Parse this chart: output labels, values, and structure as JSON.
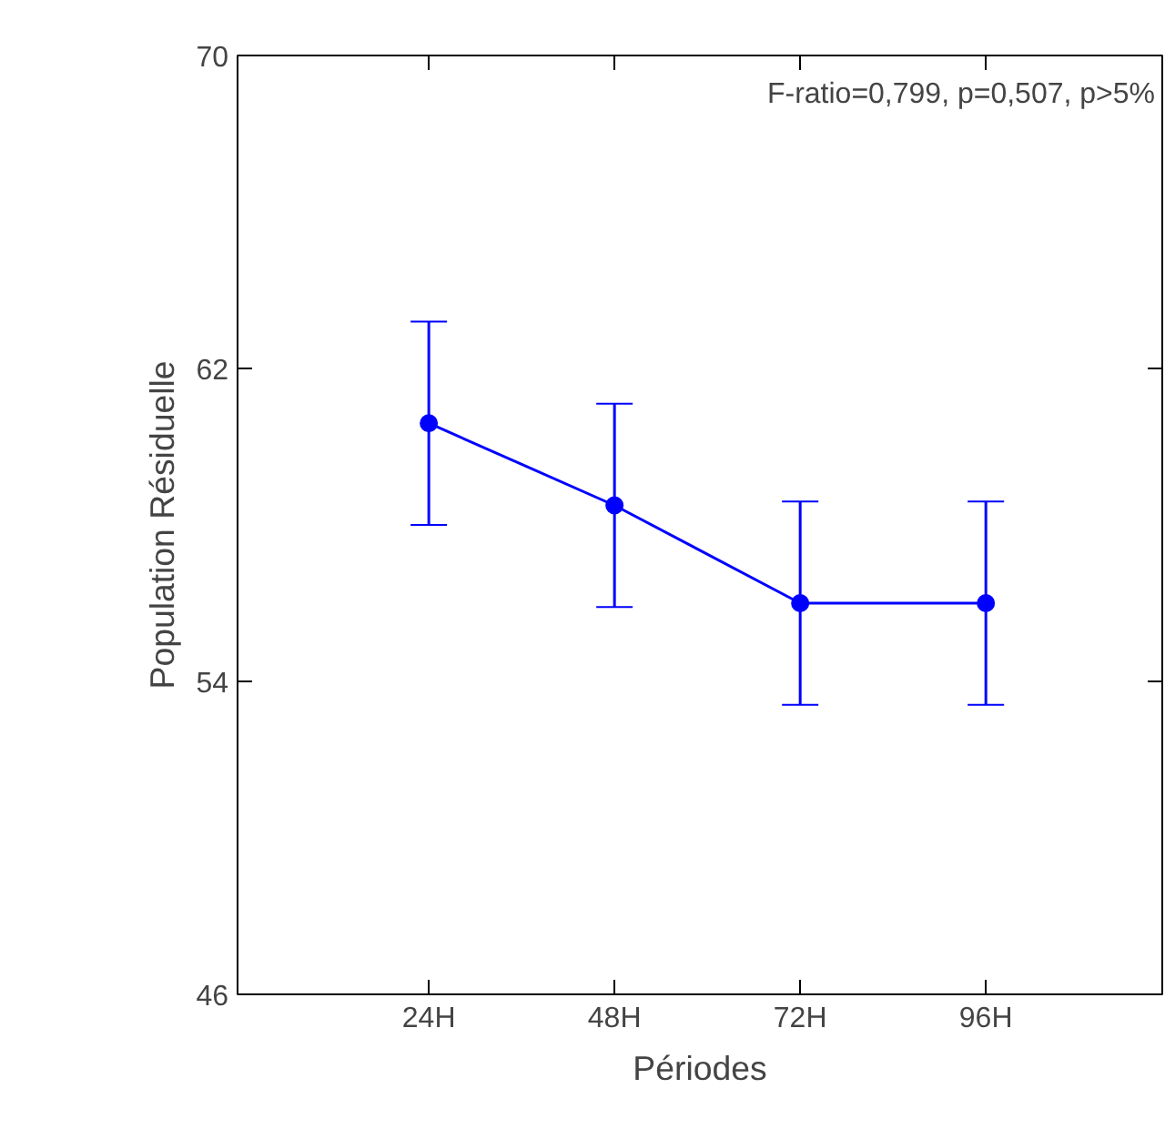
{
  "chart_data": {
    "type": "line",
    "xlabel": "Périodes",
    "ylabel": "Population Résiduelle",
    "categories": [
      "24H",
      "48H",
      "72H",
      "96H"
    ],
    "series": [
      {
        "color": "#0000ff",
        "values": [
          60.6,
          58.5,
          56.0,
          56.0
        ],
        "errors": [
          2.6,
          2.6,
          2.6,
          2.6
        ]
      }
    ],
    "ylim": [
      46,
      70
    ],
    "yticks": [
      46,
      54,
      62,
      70
    ],
    "grid": false,
    "marker": "circle",
    "line_style": "solid",
    "annotations": [
      "F-ratio=0,799, p=0,507, p>5%"
    ]
  }
}
